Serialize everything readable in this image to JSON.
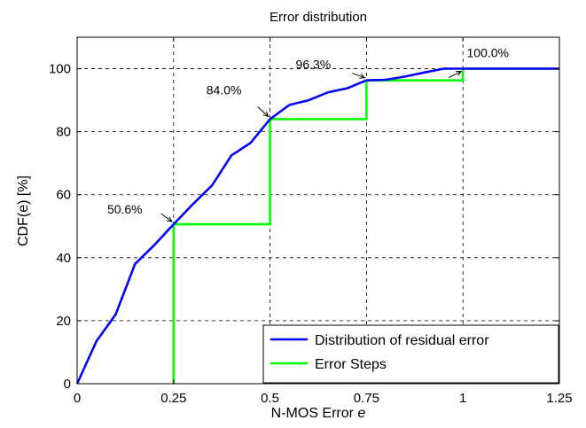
{
  "chart_data": {
    "type": "line",
    "title": "Error distribution",
    "xlabel": "N-MOS Error",
    "xlabel_var": "e",
    "ylabel": "CDF(e) [%]",
    "xlim": [
      0,
      1.25
    ],
    "ylim": [
      0,
      110
    ],
    "xticks": [
      0,
      0.25,
      0.5,
      0.75,
      1,
      1.25
    ],
    "xtick_labels": [
      "0",
      "0.25",
      "0.5",
      "0.75",
      "1",
      "1.25"
    ],
    "yticks": [
      0,
      20,
      40,
      60,
      80,
      100
    ],
    "ytick_labels": [
      "0",
      "20",
      "40",
      "60",
      "80",
      "100"
    ],
    "grid": true,
    "legend_position": "bottom-right",
    "series": [
      {
        "name": "Distribution of residual error",
        "color": "#0000ff",
        "x": [
          0,
          0.05,
          0.1,
          0.15,
          0.2,
          0.25,
          0.3,
          0.35,
          0.4,
          0.45,
          0.5,
          0.55,
          0.6,
          0.65,
          0.7,
          0.75,
          0.8,
          0.85,
          0.9,
          0.95,
          1.0,
          1.25
        ],
        "y": [
          0,
          13.5,
          22,
          38,
          44,
          50.6,
          57,
          63,
          72.5,
          76.5,
          84.0,
          88.5,
          90,
          92.5,
          93.8,
          96.3,
          96.5,
          97.5,
          98.8,
          100,
          100,
          100
        ]
      },
      {
        "name": "Error Steps",
        "color": "#00ff00",
        "x": [
          0.25,
          0.25,
          0.5,
          0.5,
          0.75,
          0.75,
          1.0,
          1.0,
          1.25
        ],
        "y": [
          0,
          50.6,
          50.6,
          84.0,
          84.0,
          96.3,
          96.3,
          100,
          100
        ]
      }
    ],
    "annotations": [
      {
        "text": "50.6%",
        "x": 0.25,
        "y": 50.6
      },
      {
        "text": "84.0%",
        "x": 0.5,
        "y": 84.0
      },
      {
        "text": "96.3%",
        "x": 0.75,
        "y": 96.3
      },
      {
        "text": "100.0%",
        "x": 1.0,
        "y": 100.0
      }
    ]
  }
}
